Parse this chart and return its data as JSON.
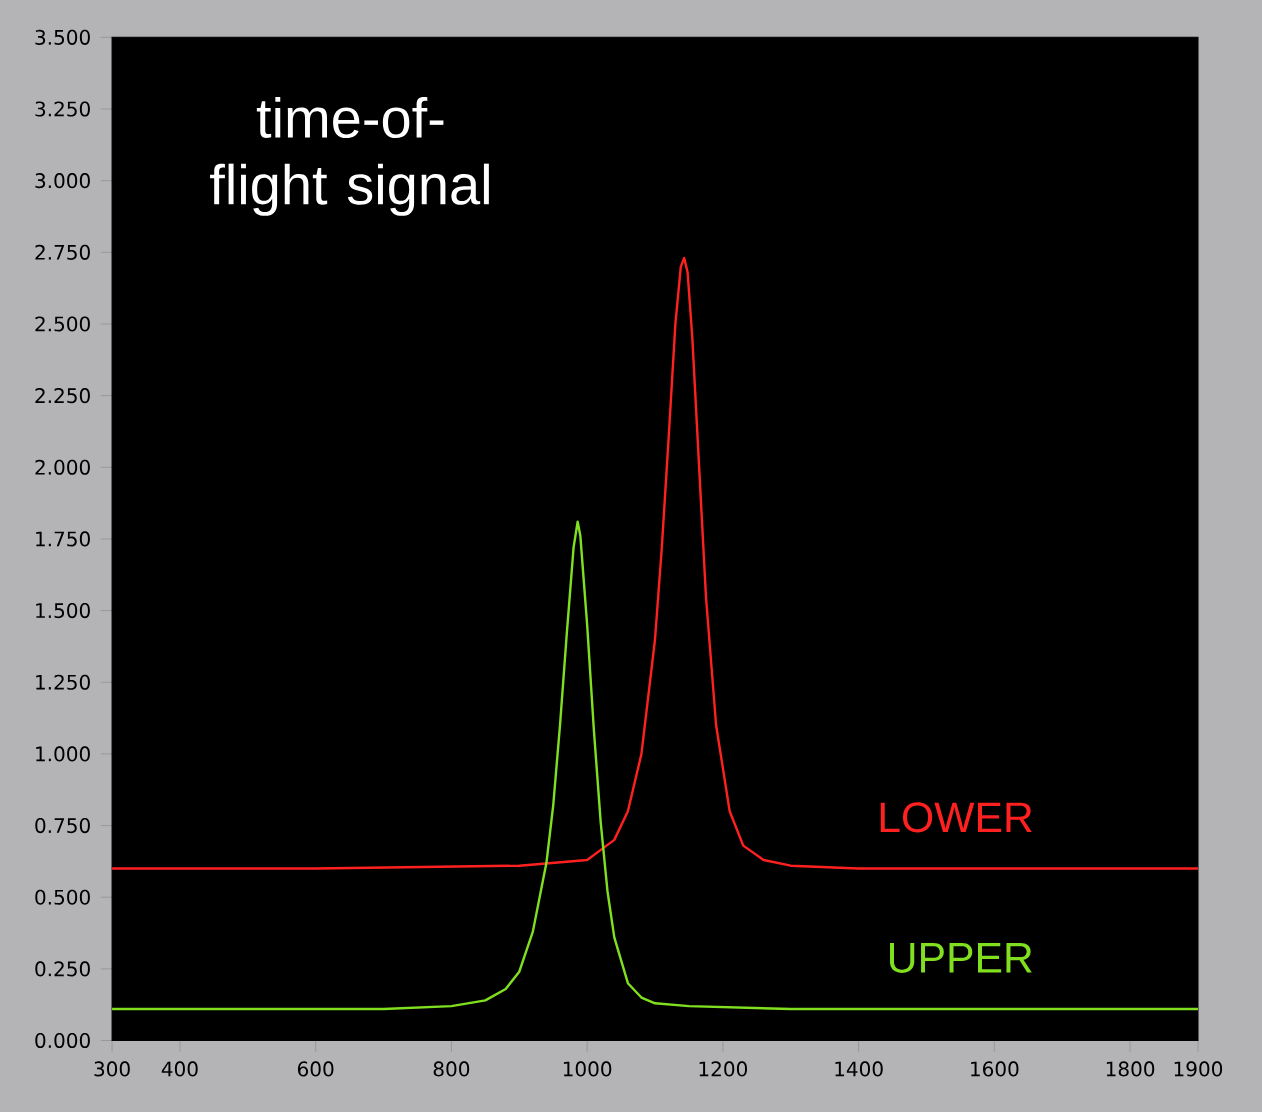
{
  "chart_data": {
    "type": "line",
    "title": "time-of-flight signal",
    "xlim": [
      300,
      1900
    ],
    "xticks": [
      300,
      400,
      600,
      800,
      1000,
      1200,
      1400,
      1600,
      1800,
      1900
    ],
    "ylim": [
      0,
      3.5
    ],
    "yticks": [
      {
        "value": 0,
        "label": "0.000"
      },
      {
        "value": 0.25,
        "label": "0.250"
      },
      {
        "value": 0.5,
        "label": "0.500"
      },
      {
        "value": 0.75,
        "label": "0.750"
      },
      {
        "value": 1,
        "label": "1.000"
      },
      {
        "value": 1.25,
        "label": "1.250"
      },
      {
        "value": 1.5,
        "label": "1.500"
      },
      {
        "value": 1.75,
        "label": "1.750"
      },
      {
        "value": 2,
        "label": "2.000"
      },
      {
        "value": 2.25,
        "label": "2.250"
      },
      {
        "value": 2.5,
        "label": "2.500"
      },
      {
        "value": 2.75,
        "label": "2.750"
      },
      {
        "value": 3,
        "label": "3.000"
      },
      {
        "value": 3.25,
        "label": "3.250"
      },
      {
        "value": 3.5,
        "label": "3.500"
      }
    ],
    "grid": false,
    "legend": false,
    "marker": "none",
    "line_style": "solid",
    "series": [
      {
        "name": "LOWER",
        "color": "#ff2020",
        "x": [
          300,
          600,
          900,
          1000,
          1040,
          1060,
          1080,
          1100,
          1110,
          1120,
          1130,
          1138,
          1143,
          1148,
          1155,
          1165,
          1175,
          1190,
          1210,
          1230,
          1260,
          1300,
          1400,
          1600,
          1900
        ],
        "values": [
          0.6,
          0.6,
          0.61,
          0.63,
          0.7,
          0.8,
          1.0,
          1.4,
          1.72,
          2.1,
          2.5,
          2.7,
          2.73,
          2.68,
          2.45,
          2.0,
          1.55,
          1.1,
          0.8,
          0.68,
          0.63,
          0.61,
          0.6,
          0.6,
          0.6
        ]
      },
      {
        "name": "UPPER",
        "color": "#80e020",
        "x": [
          300,
          500,
          700,
          800,
          850,
          880,
          900,
          920,
          940,
          950,
          960,
          970,
          980,
          986,
          990,
          1000,
          1010,
          1020,
          1030,
          1040,
          1060,
          1080,
          1100,
          1150,
          1300,
          1500,
          1700,
          1900
        ],
        "values": [
          0.11,
          0.11,
          0.11,
          0.12,
          0.14,
          0.18,
          0.24,
          0.38,
          0.62,
          0.82,
          1.1,
          1.42,
          1.72,
          1.81,
          1.76,
          1.45,
          1.08,
          0.76,
          0.52,
          0.36,
          0.2,
          0.15,
          0.13,
          0.12,
          0.11,
          0.11,
          0.11,
          0.11
        ]
      }
    ]
  }
}
